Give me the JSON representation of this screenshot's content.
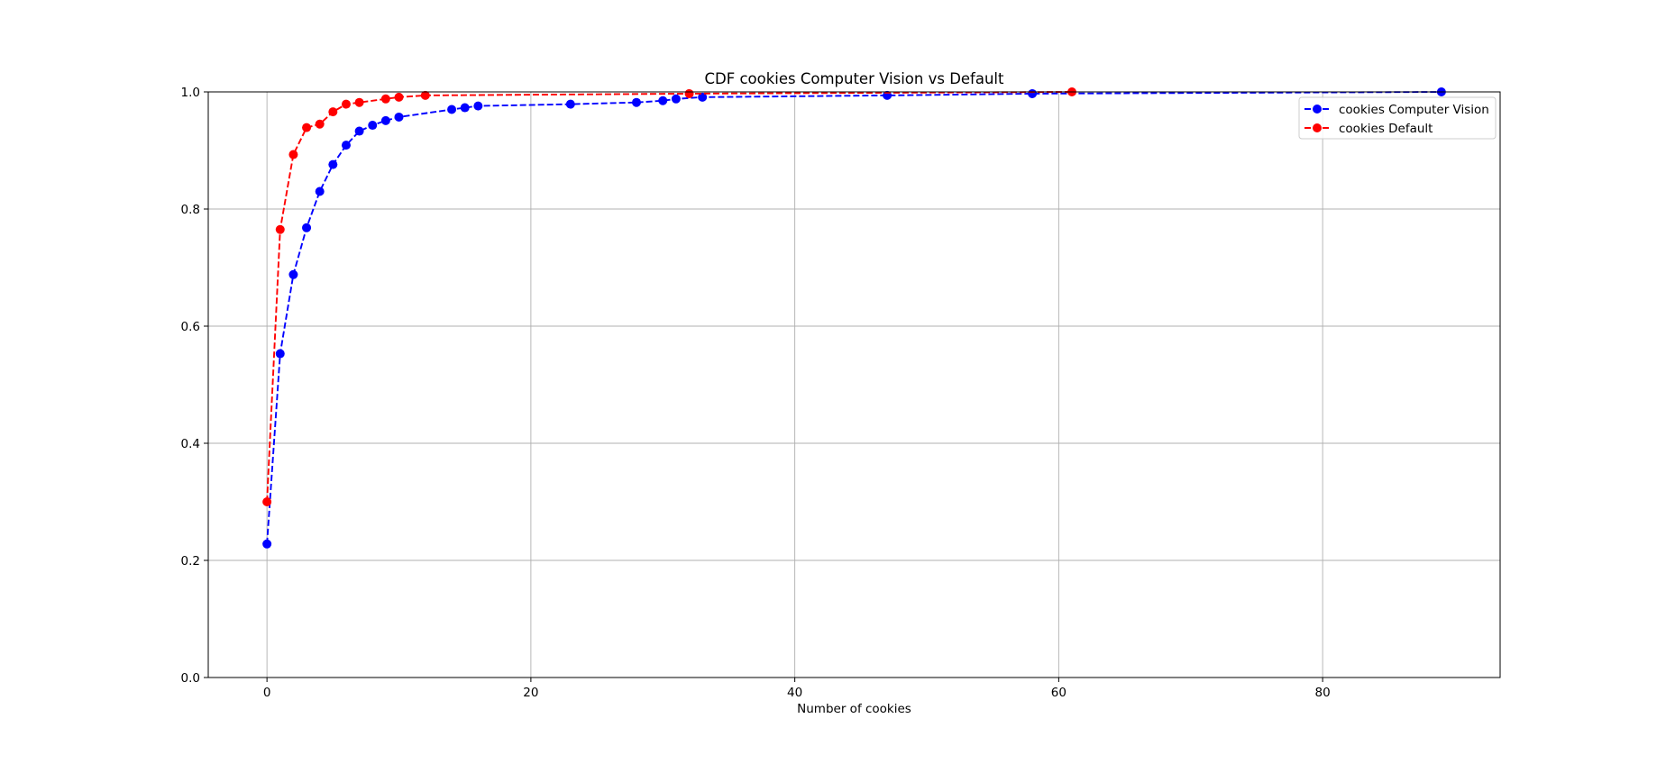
{
  "chart_data": {
    "type": "line",
    "title": "CDF cookies Computer Vision vs Default",
    "xlabel": "Number of cookies",
    "ylabel": "",
    "xlim": [
      -4.45,
      93.45
    ],
    "ylim": [
      0.0,
      1.0
    ],
    "xticks": [
      0,
      20,
      40,
      60,
      80
    ],
    "yticks": [
      0.0,
      0.2,
      0.4,
      0.6,
      0.8,
      1.0
    ],
    "xtick_labels": [
      "0",
      "20",
      "40",
      "60",
      "80"
    ],
    "ytick_labels": [
      "0.0",
      "0.2",
      "0.4",
      "0.6",
      "0.8",
      "1.0"
    ],
    "grid": true,
    "legend_position": "top-right",
    "series": [
      {
        "name": "cookies Computer Vision",
        "color": "#0000ff",
        "line_style": "dashed",
        "marker": "circle",
        "x": [
          0,
          1,
          2,
          3,
          4,
          5,
          6,
          7,
          8,
          9,
          10,
          14,
          15,
          16,
          23,
          28,
          30,
          31,
          33,
          47,
          58,
          89
        ],
        "y": [
          0.228,
          0.553,
          0.688,
          0.768,
          0.83,
          0.876,
          0.909,
          0.933,
          0.943,
          0.951,
          0.957,
          0.97,
          0.973,
          0.976,
          0.979,
          0.982,
          0.985,
          0.988,
          0.991,
          0.994,
          0.997,
          1.0
        ]
      },
      {
        "name": "cookies Default",
        "color": "#ff0000",
        "line_style": "dashed",
        "marker": "circle",
        "x": [
          0,
          1,
          2,
          3,
          4,
          5,
          6,
          7,
          9,
          10,
          12,
          32,
          61
        ],
        "y": [
          0.3,
          0.765,
          0.893,
          0.939,
          0.945,
          0.966,
          0.979,
          0.982,
          0.988,
          0.991,
          0.994,
          0.997,
          1.0
        ]
      }
    ]
  }
}
